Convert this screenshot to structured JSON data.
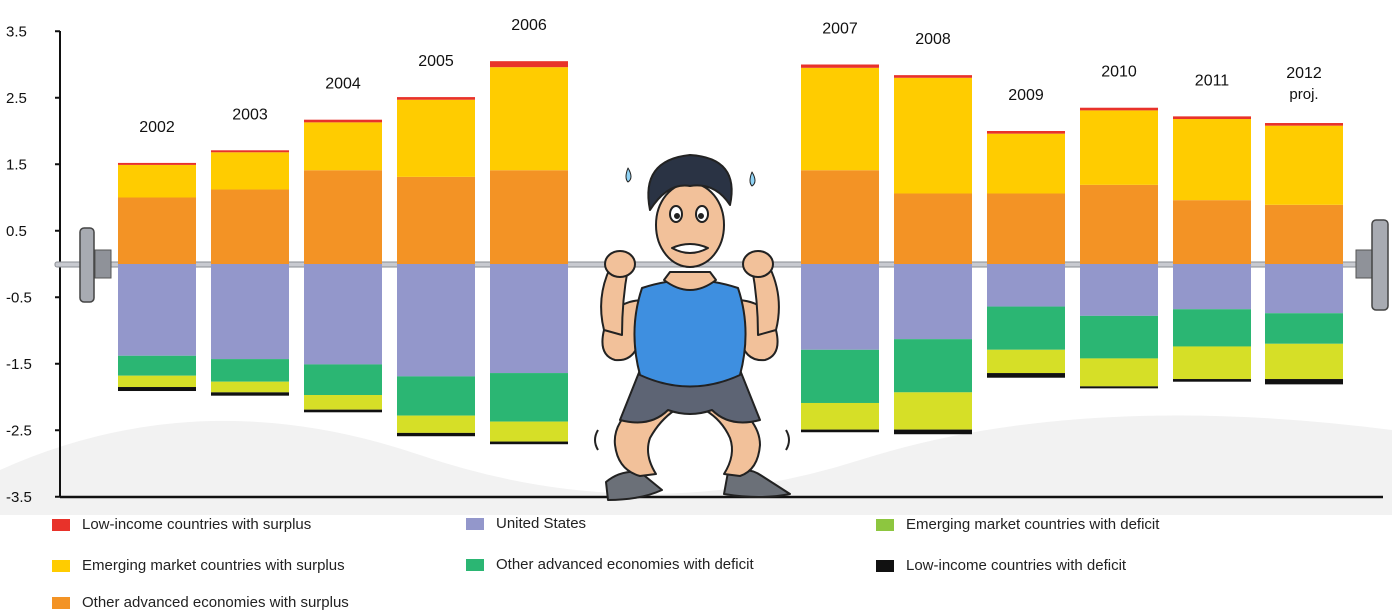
{
  "chart_data": {
    "type": "bar",
    "stacked": true,
    "categories": [
      "2002",
      "2003",
      "2004",
      "2005",
      "2006",
      "2007",
      "2008",
      "2009",
      "2010",
      "2011",
      "2012"
    ],
    "category_sublabels": [
      "",
      "",
      "",
      "",
      "",
      "",
      "",
      "",
      "",
      "",
      "proj."
    ],
    "y_ticks": [
      "3.5",
      "2.5",
      "1.5",
      "0.5",
      "-0.5",
      "-1.5",
      "-2.5",
      "-3.5"
    ],
    "ylim": [
      -3.5,
      3.5
    ],
    "series": [
      {
        "name": "Other advanced economies with surplus",
        "color": "#f39325",
        "side": "positive",
        "values": [
          1.0,
          1.12,
          1.41,
          1.31,
          1.41,
          1.41,
          1.06,
          1.06,
          1.19,
          0.96,
          0.89
        ]
      },
      {
        "name": "Emerging market countries with surplus",
        "color": "#ffcc00",
        "side": "positive",
        "values": [
          0.49,
          0.56,
          0.72,
          1.16,
          1.55,
          1.54,
          1.74,
          0.9,
          1.12,
          1.22,
          1.19
        ]
      },
      {
        "name": "Low-income countries with surplus",
        "color": "#e8322a",
        "side": "positive",
        "values": [
          0.03,
          0.03,
          0.04,
          0.04,
          0.09,
          0.05,
          0.04,
          0.04,
          0.04,
          0.04,
          0.04
        ]
      },
      {
        "name": "United States",
        "color": "#9397cb",
        "side": "negative",
        "values": [
          -1.38,
          -1.43,
          -1.51,
          -1.69,
          -1.64,
          -1.29,
          -1.13,
          -0.64,
          -0.78,
          -0.68,
          -0.74
        ]
      },
      {
        "name": "Other advanced economies with deficit",
        "color": "#2bb673",
        "side": "negative",
        "values": [
          -0.3,
          -0.34,
          -0.46,
          -0.59,
          -0.73,
          -0.8,
          -0.8,
          -0.65,
          -0.64,
          -0.56,
          -0.46
        ]
      },
      {
        "name": "Emerging market countries with deficit",
        "color": "#d6df27",
        "side": "negative",
        "values": [
          -0.17,
          -0.16,
          -0.22,
          -0.26,
          -0.3,
          -0.4,
          -0.56,
          -0.35,
          -0.42,
          -0.49,
          -0.53
        ]
      },
      {
        "name": "Low-income countries with deficit",
        "color": "#111111",
        "side": "negative",
        "values": [
          -0.06,
          -0.05,
          -0.04,
          -0.05,
          -0.04,
          -0.04,
          -0.07,
          -0.07,
          -0.03,
          -0.04,
          -0.08
        ]
      }
    ],
    "legend_placement": "bottom",
    "grid": false
  }
}
